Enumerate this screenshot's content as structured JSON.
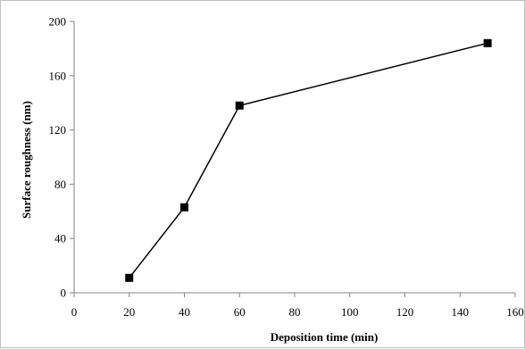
{
  "chart_data": {
    "type": "line",
    "title": "",
    "xlabel": "Deposition time (min)",
    "ylabel": "Surface  roughness (nm)",
    "xlim": [
      0,
      160
    ],
    "ylim": [
      0,
      200
    ],
    "xticks": [
      0,
      20,
      40,
      60,
      80,
      100,
      120,
      140,
      160
    ],
    "yticks": [
      0,
      40,
      80,
      120,
      160,
      200
    ],
    "grid": false,
    "legend": "none",
    "series": [
      {
        "marker": "square",
        "color": "#000000",
        "x": [
          20,
          40,
          60,
          150
        ],
        "y": [
          11,
          63,
          138,
          184
        ]
      }
    ]
  }
}
